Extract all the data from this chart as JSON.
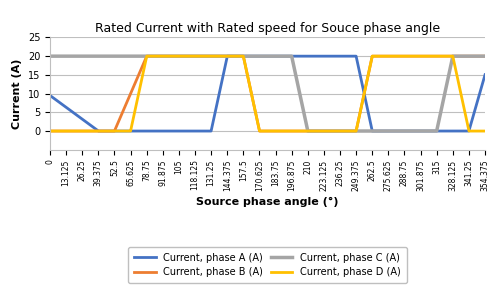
{
  "title": "Rated Current with Rated speed for Souce phase angle",
  "xlabel": "Source phase angle (°)",
  "ylabel": "Current (A)",
  "ylim": [
    -5,
    25
  ],
  "yticks": [
    0,
    5,
    10,
    15,
    20,
    25
  ],
  "phase_A_color": "#4472C4",
  "phase_B_color": "#ED7D31",
  "phase_C_color": "#A5A5A5",
  "phase_D_color": "#FFC000",
  "legend_labels": [
    "Current, phase A (A)",
    "Current, phase B (A)",
    "Current, phase C (A)",
    "Current, phase D (A)"
  ],
  "x_step": 13.125,
  "x_max": 354.375,
  "rated_current": 20,
  "xtick_labels": [
    "0",
    "13.125",
    "26.25",
    "39.375",
    "52.5",
    "65.625",
    "78.75",
    "91.875",
    "105",
    "118.125",
    "131.25",
    "144.375",
    "157.5",
    "170.625",
    "183.75",
    "196.875",
    "210",
    "223.125",
    "236.25",
    "249.375",
    "262.5",
    "275.625",
    "288.75",
    "301.875",
    "315",
    "328.125",
    "341.25",
    "354.375"
  ],
  "figsize": [
    5.0,
    2.88
  ],
  "dpi": 100,
  "title_fontsize": 9,
  "axis_label_fontsize": 8,
  "tick_fontsize": 5.5,
  "ytick_fontsize": 7,
  "legend_fontsize": 7,
  "linewidth": 2.0,
  "grid_color": "#BFBFBF",
  "bg_color": "#FFFFFF"
}
